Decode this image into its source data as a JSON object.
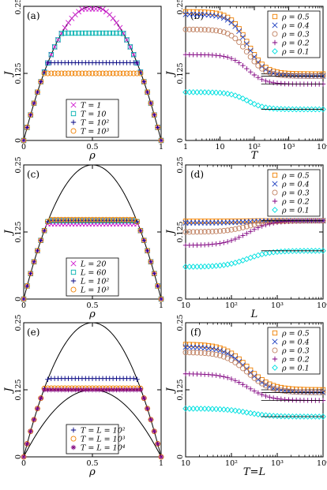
{
  "chart_data": [
    {
      "type": "scatter",
      "panel": "(a)",
      "xlabel": "ρ",
      "ylabel": "J",
      "xscale": "linear",
      "xlim": [
        0,
        1
      ],
      "ylim": [
        0,
        0.25
      ],
      "xticks": [
        "0",
        "0.5",
        "1"
      ],
      "yticks": [
        "0",
        "0.125",
        "0.25"
      ],
      "legend_position": "bottom-center",
      "series": [
        {
          "name": "T = 1",
          "marker": "x",
          "color": "#d020d0",
          "plateau": 0.245
        },
        {
          "name": "T = 10",
          "marker": "square",
          "color": "#00b0b0",
          "plateau": 0.2
        },
        {
          "name": "T = 10²",
          "marker": "plus",
          "color": "#000080",
          "plateau": 0.145
        },
        {
          "name": "T = 10³",
          "marker": "circle",
          "color": "#f08000",
          "plateau": 0.125
        }
      ],
      "curves": [
        {
          "formula": "ρ(1−ρ)",
          "color": "#000000"
        }
      ]
    },
    {
      "type": "scatter",
      "panel": "(b)",
      "xlabel": "T",
      "ylabel": "J",
      "xscale": "log",
      "xlim": [
        1,
        10000
      ],
      "ylim": [
        0,
        0.25
      ],
      "xticks": [
        "1",
        "10",
        "10²",
        "10³",
        "10⁴"
      ],
      "yticks": [
        "0",
        "0.125",
        "0.25"
      ],
      "legend_position": "top-right",
      "series": [
        {
          "name": "ρ = 0.5",
          "marker": "square",
          "color": "#f08000",
          "start": 0.24,
          "end": 0.124
        },
        {
          "name": "ρ = 0.4",
          "marker": "x",
          "color": "#2040c0",
          "start": 0.235,
          "end": 0.12
        },
        {
          "name": "ρ = 0.3",
          "marker": "circle",
          "color": "#c08060",
          "start": 0.207,
          "end": 0.12
        },
        {
          "name": "ρ = 0.2",
          "marker": "plus",
          "color": "#800080",
          "start": 0.16,
          "end": 0.105
        },
        {
          "name": "ρ = 0.1",
          "marker": "diamond",
          "color": "#00e0e0",
          "start": 0.09,
          "end": 0.058
        }
      ]
    },
    {
      "type": "scatter",
      "panel": "(c)",
      "xlabel": "ρ",
      "ylabel": "J",
      "xscale": "linear",
      "xlim": [
        0,
        1
      ],
      "ylim": [
        0,
        0.25
      ],
      "xticks": [
        "0",
        "0.5",
        "1"
      ],
      "yticks": [
        "0",
        "0.125",
        "0.25"
      ],
      "legend_position": "bottom-center",
      "series": [
        {
          "name": "L = 20",
          "marker": "x",
          "color": "#d020d0",
          "plateau": 0.14
        },
        {
          "name": "L = 60",
          "marker": "square",
          "color": "#00b0b0",
          "plateau": 0.146
        },
        {
          "name": "L = 10²",
          "marker": "plus",
          "color": "#000080",
          "plateau": 0.146
        },
        {
          "name": "L = 10³",
          "marker": "circle",
          "color": "#f08000",
          "plateau": 0.148
        }
      ],
      "curves": [
        {
          "formula": "ρ(1−ρ)",
          "color": "#000000"
        }
      ]
    },
    {
      "type": "scatter",
      "panel": "(d)",
      "xlabel": "L",
      "ylabel": "J",
      "xscale": "log",
      "xlim": [
        10,
        10000
      ],
      "ylim": [
        0,
        0.25
      ],
      "xticks": [
        "10",
        "10²",
        "10³",
        "10⁴"
      ],
      "yticks": [
        "0",
        "0.125",
        "0.25"
      ],
      "legend_position": "top-right",
      "series": [
        {
          "name": "ρ = 0.5",
          "marker": "square",
          "color": "#f08000",
          "start": 0.145,
          "end": 0.146
        },
        {
          "name": "ρ = 0.4",
          "marker": "x",
          "color": "#2040c0",
          "start": 0.142,
          "end": 0.146
        },
        {
          "name": "ρ = 0.3",
          "marker": "circle",
          "color": "#c08060",
          "start": 0.125,
          "end": 0.146
        },
        {
          "name": "ρ = 0.2",
          "marker": "plus",
          "color": "#800080",
          "start": 0.1,
          "end": 0.146
        },
        {
          "name": "ρ = 0.1",
          "marker": "diamond",
          "color": "#00e0e0",
          "start": 0.06,
          "end": 0.09
        }
      ]
    },
    {
      "type": "scatter",
      "panel": "(e)",
      "xlabel": "ρ",
      "ylabel": "J",
      "xscale": "linear",
      "xlim": [
        0,
        1
      ],
      "ylim": [
        0,
        0.25
      ],
      "xticks": [
        "0",
        "0.5",
        "1"
      ],
      "yticks": [
        "0",
        "0.125",
        "0.25"
      ],
      "legend_position": "bottom-center",
      "series": [
        {
          "name": "T = L = 10²",
          "marker": "plus",
          "color": "#000080",
          "plateau": 0.146
        },
        {
          "name": "T = L = 10³",
          "marker": "circle",
          "color": "#f08000",
          "plateau": 0.128
        },
        {
          "name": "T = L = 10⁴",
          "marker": "asterisk",
          "color": "#800080",
          "plateau": 0.125
        }
      ],
      "curves": [
        {
          "formula": "ρ(1−ρ)",
          "color": "#000000"
        },
        {
          "formula": "ρ(1−ρ)/2",
          "color": "#000000"
        }
      ]
    },
    {
      "type": "scatter",
      "panel": "(f)",
      "xlabel": "T=L",
      "ylabel": "J",
      "xscale": "log",
      "xlim": [
        10,
        10000
      ],
      "ylim": [
        0,
        0.25
      ],
      "xticks": [
        "10",
        "10²",
        "10³",
        "10⁴"
      ],
      "yticks": [
        "0",
        "0.125",
        "0.25"
      ],
      "legend_position": "top-right",
      "series": [
        {
          "name": "ρ = 0.5",
          "marker": "square",
          "color": "#f08000",
          "start": 0.21,
          "end": 0.125
        },
        {
          "name": "ρ = 0.4",
          "marker": "x",
          "color": "#2040c0",
          "start": 0.205,
          "end": 0.12
        },
        {
          "name": "ρ = 0.3",
          "marker": "circle",
          "color": "#c08060",
          "start": 0.195,
          "end": 0.12
        },
        {
          "name": "ρ = 0.2",
          "marker": "plus",
          "color": "#800080",
          "start": 0.155,
          "end": 0.105
        },
        {
          "name": "ρ = 0.1",
          "marker": "diamond",
          "color": "#00e0e0",
          "start": 0.09,
          "end": 0.075
        }
      ]
    }
  ]
}
